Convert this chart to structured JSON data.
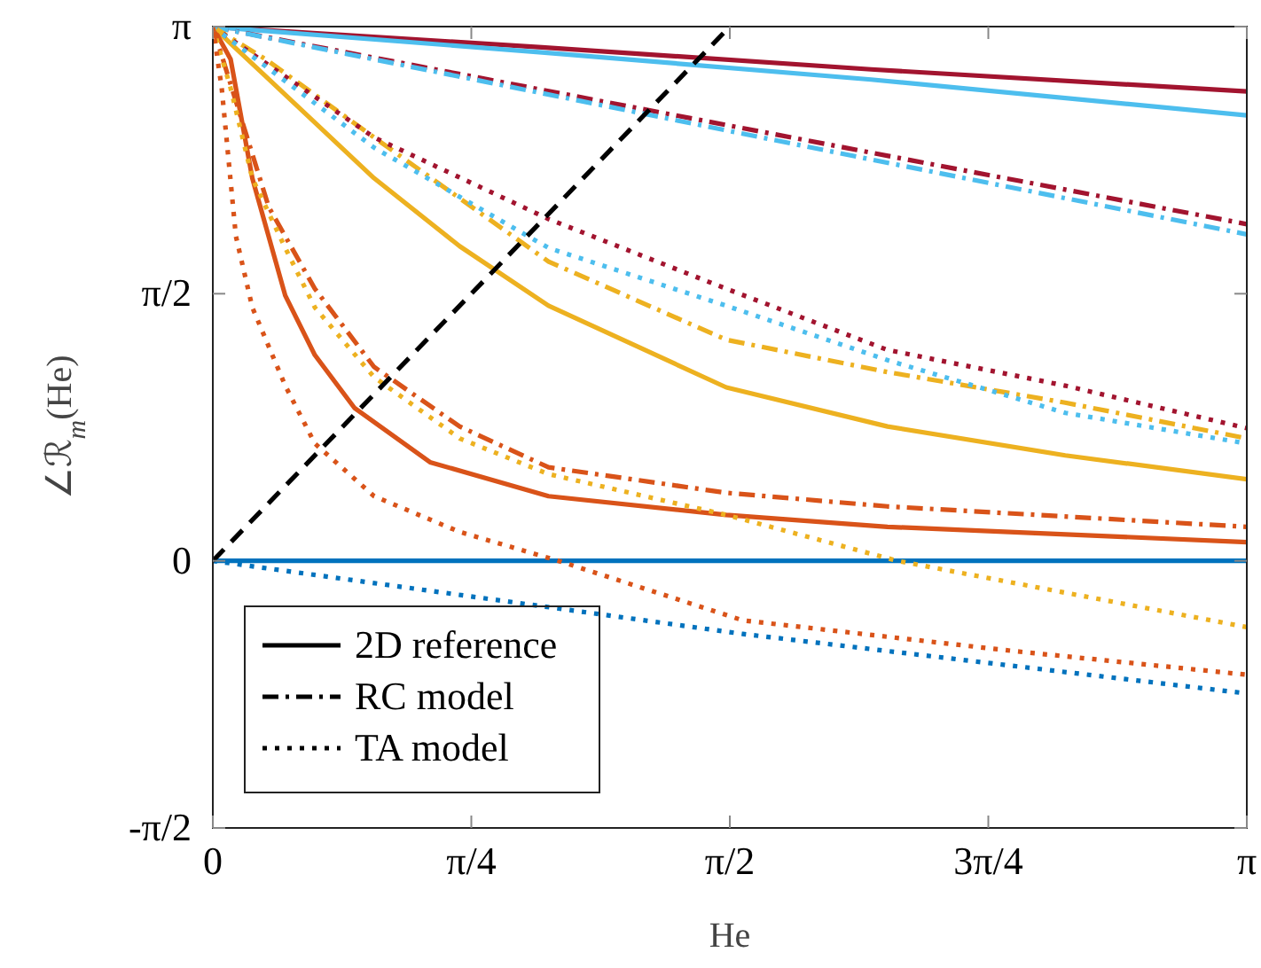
{
  "chart_data": {
    "type": "line",
    "xlabel": "He",
    "ylabel": "∠ℛ$_{m}$(He)",
    "xlim": [
      0,
      3.1416
    ],
    "xticks": [
      0,
      {
        "value": 0.7854,
        "label": "π/4"
      },
      {
        "value": 1.5708,
        "label": "π/2"
      },
      {
        "value": 2.3562,
        "label": "3π/4"
      },
      {
        "value": 3.1416,
        "label": "π"
      }
    ],
    "ylim": [
      -1.5708,
      3.1416
    ],
    "yticks": [
      {
        "value": -1.5708,
        "label": "-π/2"
      },
      0,
      {
        "value": 1.5708,
        "label": "π/2"
      },
      {
        "value": 3.1416,
        "label": "π"
      }
    ],
    "grid": false,
    "legend": "bottom left",
    "marker": "none",
    "series": [
      {
        "color": "#a2142f",
        "line_style": "solid",
        "x": [
          0,
          1,
          2,
          3.1416
        ],
        "values": [
          3.14,
          3.02,
          2.89,
          2.76
        ]
      },
      {
        "color": "#4dbeee",
        "line_style": "solid",
        "x": [
          0,
          1,
          2,
          3.1416
        ],
        "values": [
          3.14,
          2.99,
          2.83,
          2.62
        ]
      },
      {
        "color": "#edb120",
        "line_style": "solid",
        "x": [
          0,
          0.16,
          0.49,
          0.75,
          1.02,
          1.56,
          2.05,
          2.59,
          3.1416
        ],
        "values": [
          3.14,
          2.85,
          2.25,
          1.85,
          1.5,
          1.02,
          0.79,
          0.62,
          0.48
        ]
      },
      {
        "color": "#d95319",
        "line_style": "solid",
        "x": [
          0,
          0.054,
          0.12,
          0.22,
          0.31,
          0.43,
          0.66,
          1.02,
          1.56,
          2.05,
          3.1416
        ],
        "values": [
          3.14,
          2.95,
          2.25,
          1.56,
          1.21,
          0.9,
          0.58,
          0.38,
          0.27,
          0.2,
          0.11
        ]
      },
      {
        "color": "#0072bd",
        "line_style": "solid",
        "x": [
          0,
          3.1416
        ],
        "values": [
          0,
          0
        ]
      },
      {
        "color": "#a2142f",
        "line_style": "dashdot",
        "x": [
          0,
          1,
          2,
          3.1416
        ],
        "values": [
          3.14,
          2.77,
          2.4,
          1.98
        ]
      },
      {
        "color": "#4dbeee",
        "line_style": "dashdot",
        "x": [
          0,
          1,
          2,
          3.1416
        ],
        "values": [
          3.14,
          2.75,
          2.36,
          1.92
        ]
      },
      {
        "color": "#edb120",
        "line_style": "dashdot",
        "x": [
          0,
          0.16,
          0.49,
          1.02,
          1.56,
          2.05,
          2.59,
          3.1416
        ],
        "values": [
          3.14,
          2.95,
          2.49,
          1.76,
          1.3,
          1.11,
          0.93,
          0.72
        ]
      },
      {
        "color": "#d95319",
        "line_style": "dashdot",
        "x": [
          0,
          0.17,
          0.31,
          0.49,
          0.75,
          1.02,
          1.56,
          2.05,
          3.1416
        ],
        "values": [
          3.14,
          2.08,
          1.6,
          1.14,
          0.79,
          0.55,
          0.4,
          0.32,
          0.2
        ]
      },
      {
        "color": "#a2142f",
        "line_style": "dotted",
        "x": [
          0,
          0.49,
          1.02,
          1.56,
          2.05,
          2.59,
          3.1416
        ],
        "values": [
          3.14,
          2.49,
          2.01,
          1.6,
          1.24,
          1.03,
          0.78
        ]
      },
      {
        "color": "#4dbeee",
        "line_style": "dotted",
        "x": [
          0,
          0.49,
          1.02,
          1.56,
          2.05,
          2.59,
          3.1416
        ],
        "values": [
          3.14,
          2.43,
          1.84,
          1.5,
          1.18,
          0.87,
          0.69
        ]
      },
      {
        "color": "#edb120",
        "line_style": "dotted",
        "x": [
          0,
          0.054,
          0.12,
          0.22,
          0.31,
          0.49,
          0.75,
          1.02,
          1.56,
          2.08,
          3.1416
        ],
        "values": [
          3.14,
          2.78,
          2.25,
          1.84,
          1.49,
          1.08,
          0.72,
          0.51,
          0.27,
          0,
          -0.39
        ]
      },
      {
        "color": "#d95319",
        "line_style": "dotted",
        "x": [
          0,
          0.027,
          0.07,
          0.12,
          0.22,
          0.31,
          0.49,
          0.75,
          1.05,
          1.61,
          2.43,
          3.1416
        ],
        "values": [
          3.14,
          2.78,
          1.91,
          1.49,
          1.03,
          0.69,
          0.38,
          0.17,
          0,
          -0.35,
          -0.53,
          -0.67
        ]
      },
      {
        "color": "#0072bd",
        "line_style": "dotted",
        "x": [
          0,
          1.61,
          3.1416
        ],
        "values": [
          0,
          -0.43,
          -0.78
        ]
      },
      {
        "color": "#000000",
        "line_style": "dashed",
        "x": [
          0,
          1.57
        ],
        "values": [
          0,
          3.14
        ]
      },
      {
        "name": "2D reference",
        "color": "#000000",
        "line_style": "solid"
      },
      {
        "name": "RC model",
        "color": "#000000",
        "line_style": "dashdot"
      },
      {
        "name": "TA model",
        "color": "#000000",
        "line_style": "dotted"
      }
    ]
  }
}
